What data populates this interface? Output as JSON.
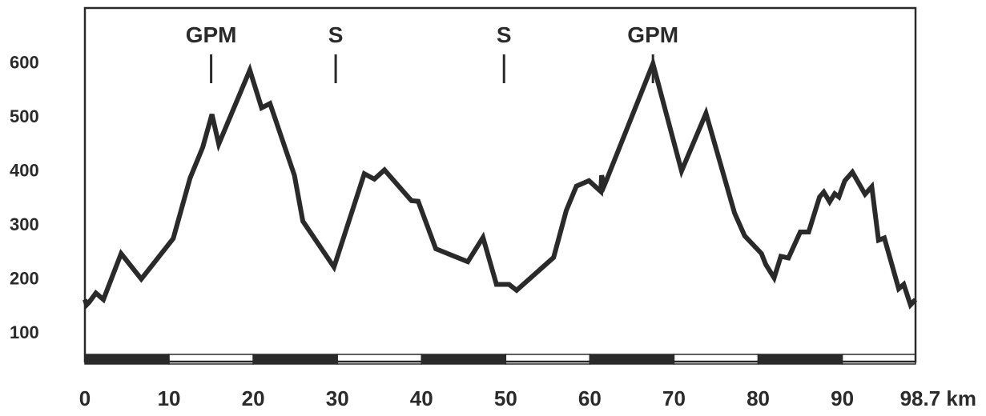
{
  "chart_data": {
    "type": "line",
    "title": "",
    "xlabel": "",
    "ylabel": "",
    "xlim": [
      0,
      98.7
    ],
    "ylim": [
      45,
      700
    ],
    "y_ticks": [
      "100",
      "200",
      "300",
      "400",
      "500",
      "600"
    ],
    "x_ticks": [
      "0",
      "10",
      "20",
      "30",
      "40",
      "50",
      "60",
      "70",
      "80",
      "90",
      "98.7 km"
    ],
    "grid": false,
    "line_color": "#2a2a2a",
    "scale_bar_colors": [
      "#2a2a2a",
      "#ffffff"
    ],
    "markers": [
      {
        "label": "GPM",
        "x": 15.0
      },
      {
        "label": "S",
        "x": 29.8
      },
      {
        "label": "S",
        "x": 49.8
      },
      {
        "label": "GPM",
        "x": 67.5
      }
    ],
    "series": [
      {
        "x": [
          0,
          0.2,
          0.5,
          1.3,
          2.2,
          4.3,
          6.7,
          10.5,
          12.5,
          14.0,
          15.1,
          15.9,
          19.6,
          21.0,
          22.0,
          24.9,
          25.9,
          29.6,
          33.2,
          34.4,
          35.6,
          38.8,
          39.6,
          41.7,
          45.5,
          47.3,
          48.9,
          50.4,
          51.3,
          55.7,
          57.2,
          58.4,
          59.9,
          61.3,
          61.4,
          61.7,
          62.0,
          67.5,
          70.9,
          73.8,
          77.2,
          78.4,
          80.4,
          80.9,
          81.9,
          82.7,
          83.6,
          85.0,
          86.0,
          87.3,
          87.8,
          88.5,
          89.1,
          89.6,
          90.3,
          91.2,
          92.7,
          93.5,
          94.3,
          95.0,
          96.7,
          97.3,
          98.1,
          98.7
        ],
        "y": [
          160,
          150,
          155,
          172,
          160,
          245,
          198,
          273,
          385,
          442,
          503,
          448,
          585,
          515,
          523,
          390,
          305,
          220,
          393,
          383,
          400,
          343,
          342,
          254,
          230,
          275,
          188,
          188,
          177,
          238,
          325,
          370,
          380,
          360,
          390,
          371,
          382,
          597,
          398,
          505,
          320,
          278,
          245,
          225,
          200,
          240,
          237,
          285,
          285,
          350,
          359,
          341,
          356,
          350,
          380,
          396,
          355,
          369,
          270,
          274,
          180,
          188,
          150,
          160
        ]
      }
    ]
  }
}
